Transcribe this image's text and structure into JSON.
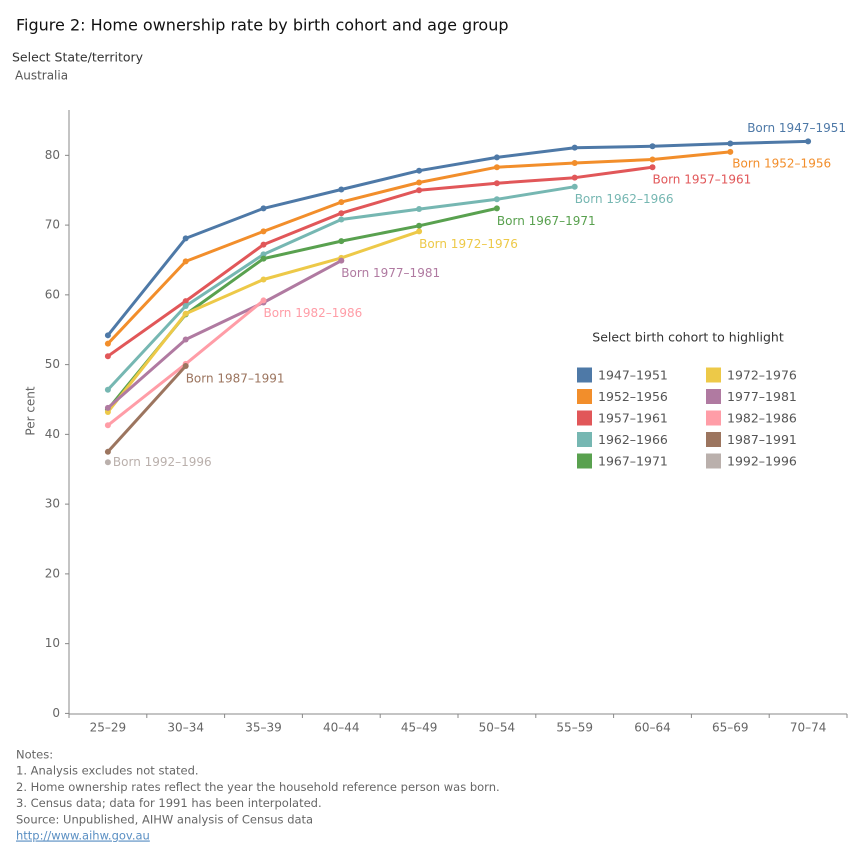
{
  "chart_data": {
    "type": "line",
    "title": "Figure 2: Home ownership rate by birth cohort and age group",
    "filter_label": "Select State/territory",
    "filter_value": "Australia",
    "y_label": "Per cent",
    "legend_title": "Select birth cohort to highlight",
    "categories": [
      "25–29",
      "30–34",
      "35–39",
      "40–44",
      "45–49",
      "50–54",
      "55–59",
      "60–64",
      "65–69",
      "70–74"
    ],
    "ylim": [
      0,
      86.5
    ],
    "yticks": [
      0,
      10,
      20,
      30,
      40,
      50,
      60,
      70,
      80
    ],
    "grid": false,
    "series": [
      {
        "name": "1947–1951",
        "end_label": "Born 1947–1951",
        "color": "#4e79a7",
        "values": [
          54.2,
          68.1,
          72.4,
          75.1,
          77.8,
          79.7,
          81.1,
          81.3,
          81.7,
          82.0
        ]
      },
      {
        "name": "1952–1956",
        "end_label": "Born 1952–1956",
        "color": "#f28e2b",
        "values": [
          53.0,
          64.8,
          69.1,
          73.3,
          76.1,
          78.3,
          78.9,
          79.4,
          80.5,
          null
        ]
      },
      {
        "name": "1957–1961",
        "end_label": "Born 1957–1961",
        "color": "#e15759",
        "values": [
          51.2,
          59.1,
          67.2,
          71.7,
          75.0,
          76.0,
          76.8,
          78.3,
          null,
          null
        ]
      },
      {
        "name": "1962–1966",
        "end_label": "Born 1962–1966",
        "color": "#76b7b2",
        "values": [
          46.4,
          58.4,
          65.8,
          70.8,
          72.3,
          73.7,
          75.5,
          null,
          null,
          null
        ]
      },
      {
        "name": "1967–1971",
        "end_label": "Born 1967–1971",
        "color": "#59a14f",
        "values": [
          43.6,
          57.2,
          65.2,
          67.7,
          69.9,
          72.4,
          null,
          null,
          null,
          null
        ]
      },
      {
        "name": "1972–1976",
        "end_label": "Born 1972–1976",
        "color": "#edc948",
        "values": [
          43.2,
          57.3,
          62.2,
          65.3,
          69.1,
          null,
          null,
          null,
          null,
          null
        ]
      },
      {
        "name": "1977–1981",
        "end_label": "Born 1977–1981",
        "color": "#b07aa1",
        "values": [
          43.8,
          53.6,
          58.9,
          64.9,
          null,
          null,
          null,
          null,
          null,
          null
        ]
      },
      {
        "name": "1982–1986",
        "end_label": "Born 1982–1986",
        "color": "#ff9da7",
        "values": [
          41.3,
          50.1,
          59.2,
          null,
          null,
          null,
          null,
          null,
          null,
          null
        ]
      },
      {
        "name": "1987–1991",
        "end_label": "Born 1987–1991",
        "color": "#9c755f",
        "values": [
          37.5,
          49.8,
          null,
          null,
          null,
          null,
          null,
          null,
          null,
          null
        ]
      },
      {
        "name": "1992–1996",
        "end_label": "Born 1992–1996",
        "color": "#bab0ac",
        "values": [
          36.0,
          null,
          null,
          null,
          null,
          null,
          null,
          null,
          null,
          null
        ]
      }
    ],
    "notes": [
      "Notes:",
      "1. Analysis excludes not stated.",
      "2. Home ownership rates reflect the year the household reference person was born.",
      "3. Census data; data for 1991 has been interpolated.",
      "Source: Unpublished, AIHW analysis of Census data"
    ],
    "link": "http://www.aihw.gov.au"
  }
}
